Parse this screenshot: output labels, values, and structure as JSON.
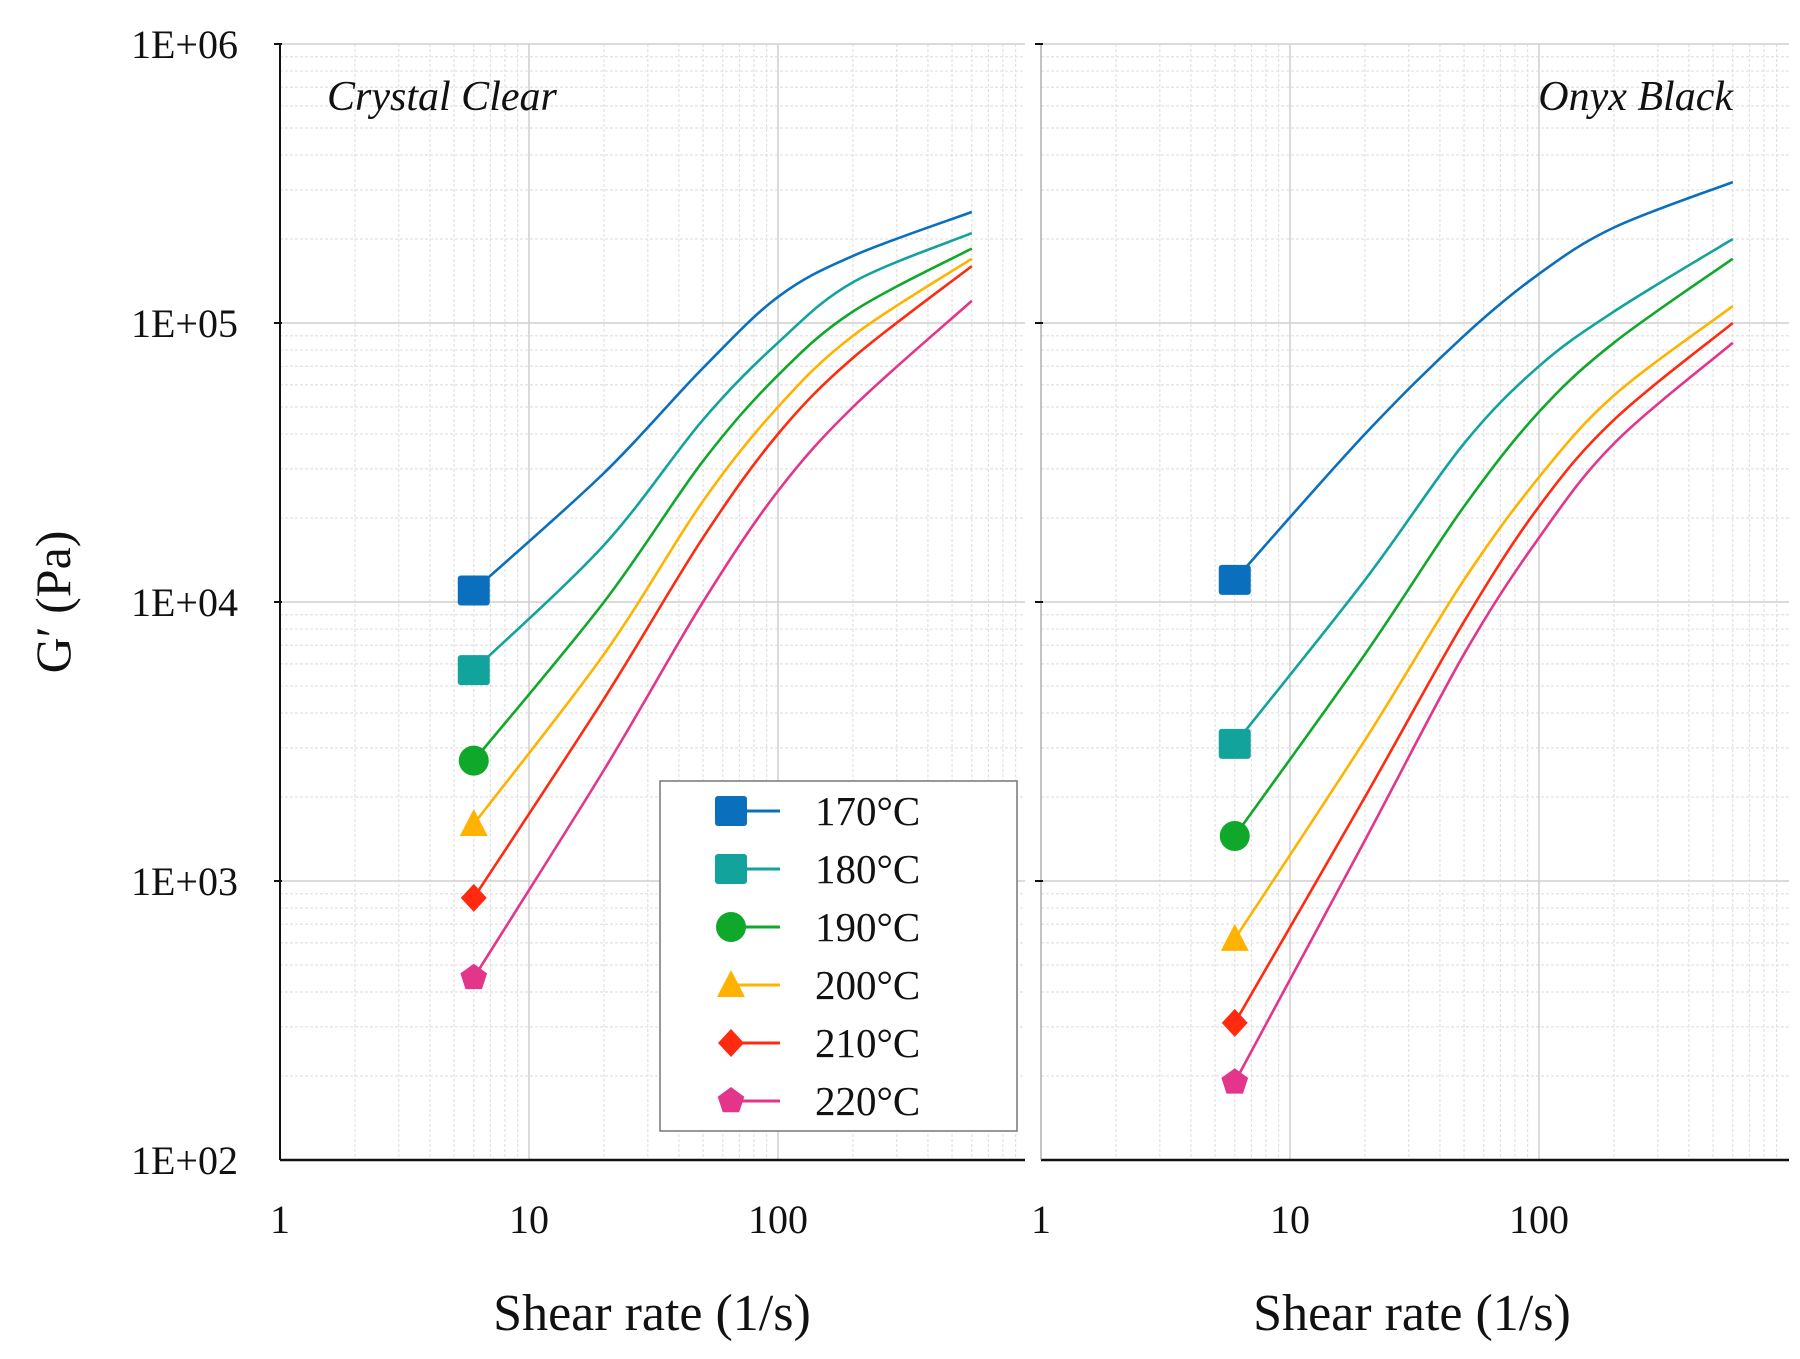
{
  "chart_data": [
    {
      "type": "line",
      "title": "Crystal Clear",
      "xlabel": "Shear rate (1/s)",
      "ylabel": "G′ (Pa)",
      "xscale": "log",
      "yscale": "log",
      "xlim": [
        1,
        1000
      ],
      "ylim": [
        100,
        1000000
      ],
      "xticks": [
        "1",
        "10",
        "100"
      ],
      "yticks": [
        "1E+02",
        "1E+03",
        "1E+04",
        "1E+05",
        "1E+06"
      ],
      "grid": true,
      "legend_placement": "bottom-right",
      "x": [
        6,
        20,
        50,
        100,
        200,
        600
      ],
      "series": [
        {
          "name": "170°C",
          "marker": "square",
          "color": "#0a6fbd",
          "values": [
            11000,
            29000,
            69000,
            124000,
            174000,
            250000
          ]
        },
        {
          "name": "180°C",
          "marker": "square",
          "color": "#12a39c",
          "values": [
            5700,
            16000,
            45000,
            85000,
            140000,
            210000
          ]
        },
        {
          "name": "190°C",
          "marker": "circle",
          "color": "#10a82a",
          "values": [
            2700,
            10000,
            32000,
            65000,
            110000,
            185000
          ]
        },
        {
          "name": "200°C",
          "marker": "triangle",
          "color": "#ffb300",
          "values": [
            1600,
            6500,
            23000,
            50000,
            90000,
            170000
          ]
        },
        {
          "name": "210°C",
          "marker": "diamond",
          "color": "#ff2a10",
          "values": [
            870,
            4500,
            17000,
            40000,
            75000,
            160000
          ]
        },
        {
          "name": "220°C",
          "marker": "pentagon",
          "color": "#e3358a",
          "values": [
            450,
            2500,
            10000,
            25000,
            50000,
            120000
          ]
        }
      ]
    },
    {
      "type": "line",
      "title": "Onyx Black",
      "xlabel": "Shear rate (1/s)",
      "xscale": "log",
      "yscale": "log",
      "xlim": [
        1,
        1000
      ],
      "ylim": [
        100,
        1000000
      ],
      "xticks": [
        "1",
        "10",
        "100"
      ],
      "grid": true,
      "x": [
        6,
        20,
        50,
        100,
        200,
        600
      ],
      "series": [
        {
          "name": "170°C",
          "marker": "square",
          "color": "#0a6fbd",
          "values": [
            12000,
            40000,
            90000,
            150000,
            220000,
            320000
          ]
        },
        {
          "name": "180°C",
          "marker": "square",
          "color": "#12a39c",
          "values": [
            3100,
            12000,
            37000,
            70000,
            110000,
            200000
          ]
        },
        {
          "name": "190°C",
          "marker": "circle",
          "color": "#10a82a",
          "values": [
            1450,
            6500,
            22000,
            48000,
            85000,
            170000
          ]
        },
        {
          "name": "200°C",
          "marker": "triangle",
          "color": "#ffb300",
          "values": [
            620,
            3200,
            12000,
            28000,
            55000,
            115000
          ]
        },
        {
          "name": "210°C",
          "marker": "diamond",
          "color": "#ff2a10",
          "values": [
            310,
            2000,
            8500,
            22000,
            45000,
            100000
          ]
        },
        {
          "name": "220°C",
          "marker": "pentagon",
          "color": "#e3358a",
          "values": [
            190,
            1400,
            6500,
            17000,
            37000,
            85000
          ]
        }
      ]
    }
  ]
}
